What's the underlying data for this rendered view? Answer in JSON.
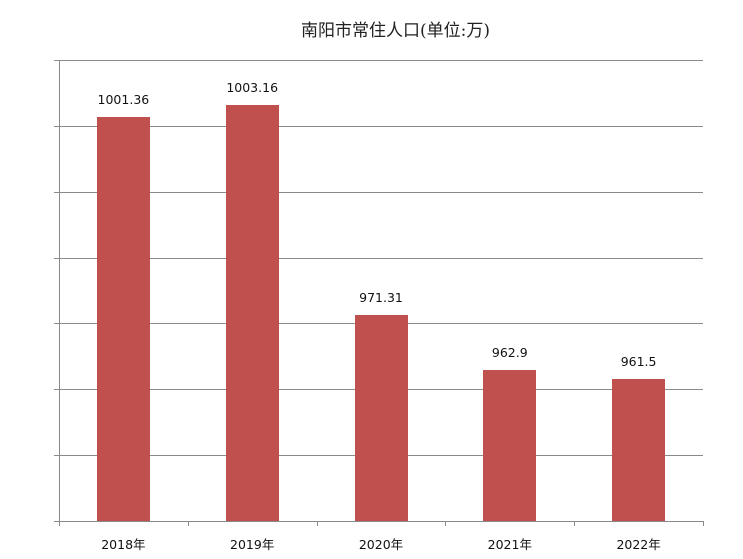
{
  "chart_data": {
    "type": "bar",
    "title": "南阳市常住人口(单位:万)",
    "categories": [
      "2018年",
      "2019年",
      "2020年",
      "2021年",
      "2022年"
    ],
    "values": [
      1001.36,
      1003.16,
      971.31,
      962.9,
      961.5
    ],
    "data_labels": [
      "1001.36",
      "1003.16",
      "971.31",
      "962.9",
      "961.5"
    ],
    "xlabel": "",
    "ylabel": "",
    "ylim": [
      940,
      1010
    ],
    "yticks": [
      940,
      950,
      960,
      970,
      980,
      990,
      1000,
      1010
    ],
    "grid": true,
    "legend": "none",
    "bar_color": "#c0504d"
  }
}
